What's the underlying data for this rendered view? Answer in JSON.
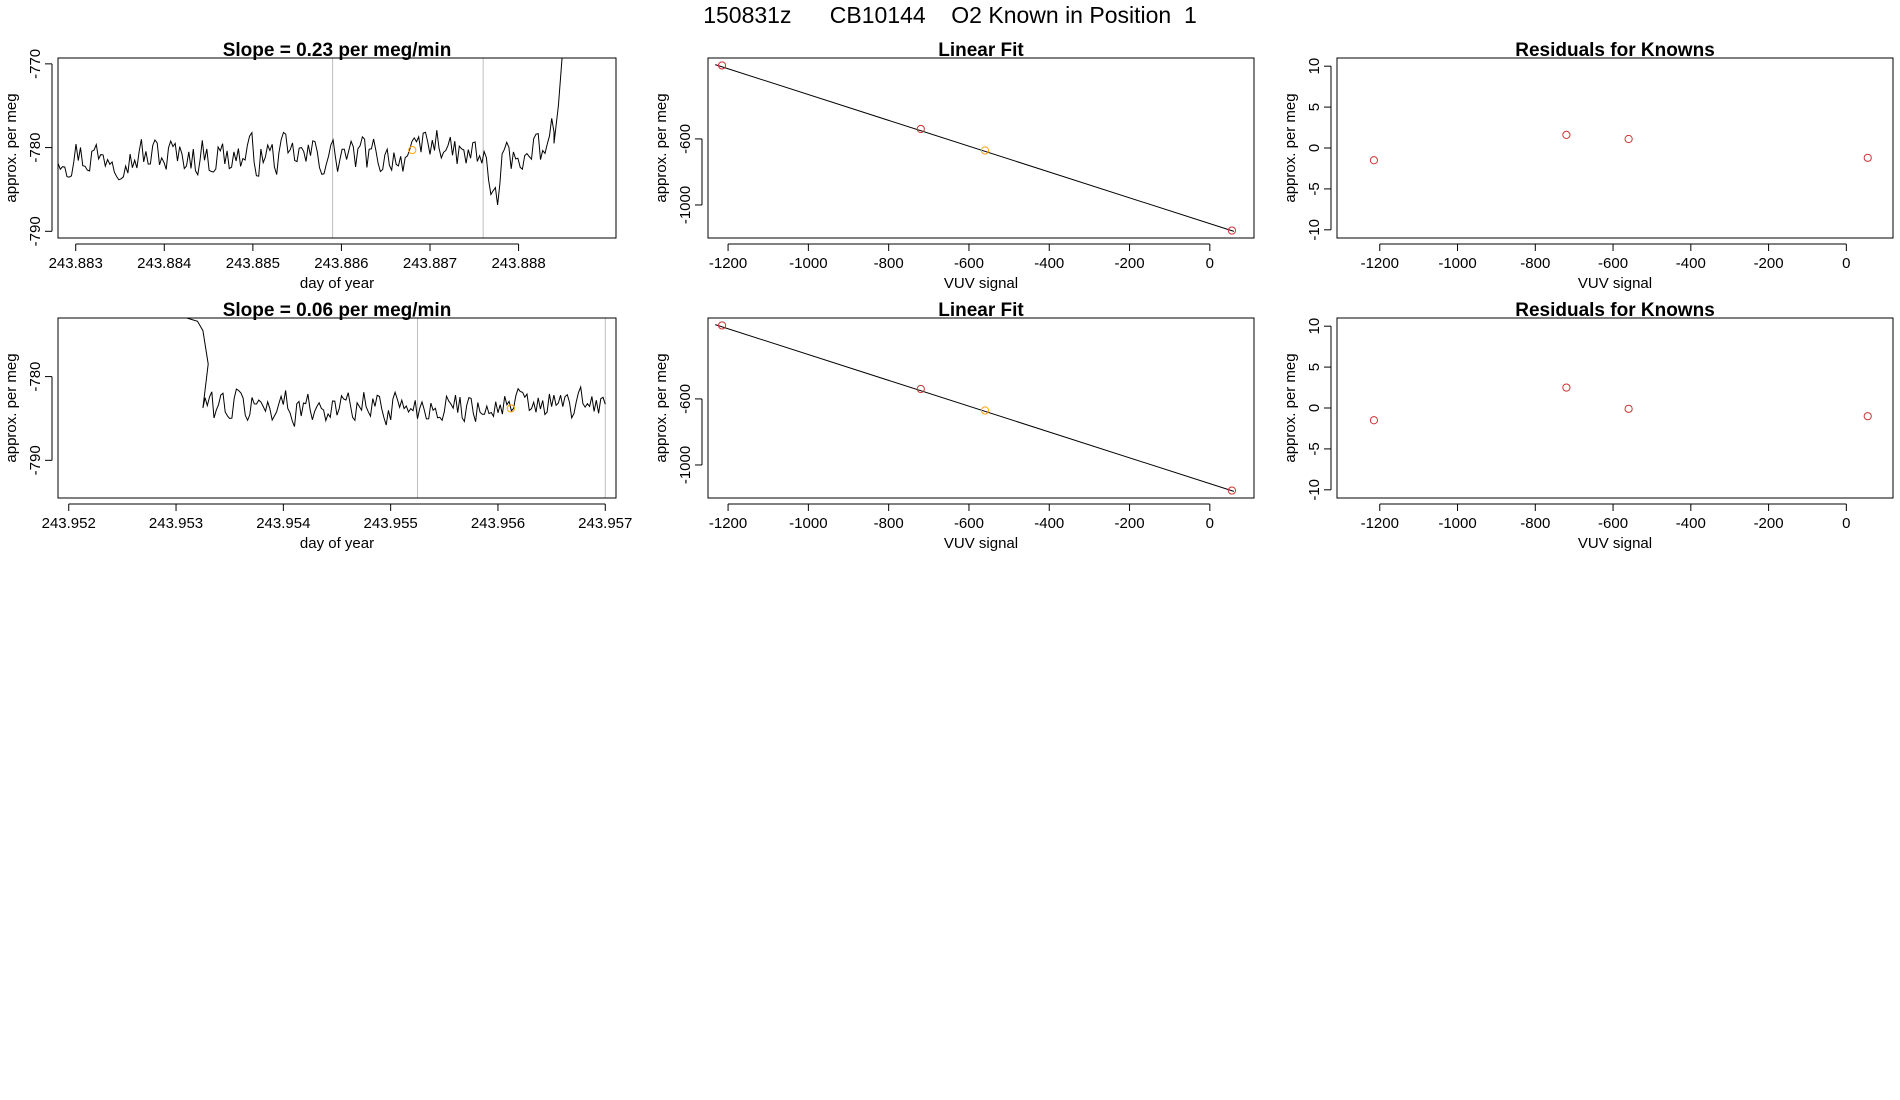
{
  "figure_title": "150831z      CB10144    O2 Known in Position  1",
  "colors": {
    "line": "#000000",
    "frame": "#000000",
    "vline": "#bebebe",
    "point_red": "#cd3333",
    "point_orange": "#ffa500"
  },
  "chart_data": [
    {
      "id": "ts1",
      "type": "line",
      "title": "Slope =  0.23  per meg/min",
      "xlabel": "day of year",
      "ylabel": "approx. per meg",
      "xlim": [
        243.8828,
        243.8891
      ],
      "ylim": [
        -790.8,
        -769.3
      ],
      "xticks": [
        243.883,
        243.884,
        243.885,
        243.886,
        243.887,
        243.888
      ],
      "xtick_labels": [
        "243.883",
        "243.884",
        "243.885",
        "243.886",
        "243.887",
        "243.888"
      ],
      "yticks": [
        -790,
        -780,
        -770
      ],
      "ytick_labels": [
        "-790",
        "-780",
        "-770"
      ],
      "vlines": [
        243.8859,
        243.8876
      ],
      "series": [
        {
          "x_start": 243.8828,
          "x_end": 243.8884,
          "n": 220,
          "base": -781,
          "amp": 1.9,
          "features": [
            {
              "x_from": 243.8869,
              "x_to": 243.8872,
              "delta": 1.6
            },
            {
              "x_from": 243.88765,
              "x_to": 243.8878,
              "delta": -4.5
            },
            {
              "x_from": 243.8883,
              "x_to": 243.8884,
              "delta": 2.5
            }
          ],
          "end_spike": {
            "x": [
              243.8884,
              243.88845,
              243.8885
            ],
            "y": [
              -779.5,
              -775.0,
              -768.0
            ]
          }
        }
      ],
      "markers": [
        {
          "x": 243.8868,
          "y": -780.3,
          "color": "orange"
        }
      ]
    },
    {
      "id": "fit1",
      "type": "scatter",
      "title": "Linear Fit",
      "xlabel": "VUV signal",
      "ylabel": "approx. per meg",
      "xlim": [
        -1250,
        110
      ],
      "ylim": [
        -1200,
        -110
      ],
      "xticks": [
        -1200,
        -1000,
        -800,
        -600,
        -400,
        -200,
        0
      ],
      "xtick_labels": [
        "-1200",
        "-1000",
        "-800",
        "-600",
        "-400",
        "-200",
        "0"
      ],
      "yticks": [
        -1000,
        -600
      ],
      "ytick_labels": [
        "-1000",
        "-600"
      ],
      "fit_line": [
        [
          -1232,
          -150
        ],
        [
          60,
          -1160
        ]
      ],
      "points": [
        {
          "x": -1215,
          "y": -155,
          "color": "red"
        },
        {
          "x": -720,
          "y": -540,
          "color": "red"
        },
        {
          "x": -560,
          "y": -670,
          "color": "orange"
        },
        {
          "x": 55,
          "y": -1155,
          "color": "red"
        }
      ]
    },
    {
      "id": "res1",
      "type": "scatter",
      "title": "Residuals for Knowns",
      "xlabel": "VUV signal",
      "ylabel": "approx. per meg",
      "xlim": [
        -1310,
        120
      ],
      "ylim": [
        -11,
        11
      ],
      "xticks": [
        -1200,
        -1000,
        -800,
        -600,
        -400,
        -200,
        0
      ],
      "xtick_labels": [
        "-1200",
        "-1000",
        "-800",
        "-600",
        "-400",
        "-200",
        "0"
      ],
      "yticks": [
        -10,
        -5,
        0,
        5,
        10
      ],
      "ytick_labels": [
        "-10",
        "-5",
        "0",
        "5",
        "10"
      ],
      "points": [
        {
          "x": -1215,
          "y": -1.5,
          "color": "red"
        },
        {
          "x": -720,
          "y": 1.6,
          "color": "red"
        },
        {
          "x": -560,
          "y": 1.1,
          "color": "red"
        },
        {
          "x": 55,
          "y": -1.2,
          "color": "red"
        }
      ]
    },
    {
      "id": "ts2",
      "type": "line",
      "title": "Slope =  0.06  per meg/min",
      "xlabel": "day of year",
      "ylabel": "approx. per meg",
      "xlim": [
        243.9519,
        243.9571
      ],
      "ylim": [
        -794.5,
        -773.0
      ],
      "xticks": [
        243.952,
        243.953,
        243.954,
        243.955,
        243.956,
        243.957
      ],
      "xtick_labels": [
        "243.952",
        "243.953",
        "243.954",
        "243.955",
        "243.956",
        "243.957"
      ],
      "yticks": [
        -790,
        -780
      ],
      "ytick_labels": [
        "-790",
        "-780"
      ],
      "vlines": [
        243.95525,
        243.957
      ],
      "series": [
        {
          "x_start": 243.95325,
          "x_end": 243.957,
          "n": 180,
          "base": -783.5,
          "amp": 1.7,
          "start_spike": {
            "x": [
              243.9531,
              243.9532,
              243.95325,
              243.9533
            ],
            "y": [
              -773.0,
              -773.4,
              -774.5,
              -778.5
            ]
          }
        }
      ],
      "markers": [
        {
          "x": 243.95612,
          "y": -783.8,
          "color": "orange"
        }
      ]
    },
    {
      "id": "fit2",
      "type": "scatter",
      "title": "Linear Fit",
      "xlabel": "VUV signal",
      "ylabel": "approx. per meg",
      "xlim": [
        -1250,
        110
      ],
      "ylim": [
        -1200,
        -110
      ],
      "xticks": [
        -1200,
        -1000,
        -800,
        -600,
        -400,
        -200,
        0
      ],
      "xtick_labels": [
        "-1200",
        "-1000",
        "-800",
        "-600",
        "-400",
        "-200",
        "0"
      ],
      "yticks": [
        -1000,
        -600
      ],
      "ytick_labels": [
        "-1000",
        "-600"
      ],
      "fit_line": [
        [
          -1232,
          -150
        ],
        [
          60,
          -1160
        ]
      ],
      "points": [
        {
          "x": -1215,
          "y": -155,
          "color": "red"
        },
        {
          "x": -720,
          "y": -540,
          "color": "red"
        },
        {
          "x": -560,
          "y": -670,
          "color": "orange"
        },
        {
          "x": 55,
          "y": -1155,
          "color": "red"
        }
      ]
    },
    {
      "id": "res2",
      "type": "scatter",
      "title": "Residuals for Knowns",
      "xlabel": "VUV signal",
      "ylabel": "approx. per meg",
      "xlim": [
        -1310,
        120
      ],
      "ylim": [
        -11,
        11
      ],
      "xticks": [
        -1200,
        -1000,
        -800,
        -600,
        -400,
        -200,
        0
      ],
      "xtick_labels": [
        "-1200",
        "-1000",
        "-800",
        "-600",
        "-400",
        "-200",
        "0"
      ],
      "yticks": [
        -10,
        -5,
        0,
        5,
        10
      ],
      "ytick_labels": [
        "-10",
        "-5",
        "0",
        "5",
        "10"
      ],
      "points": [
        {
          "x": -1215,
          "y": -1.5,
          "color": "red"
        },
        {
          "x": -720,
          "y": 2.5,
          "color": "red"
        },
        {
          "x": -560,
          "y": -0.1,
          "color": "red"
        },
        {
          "x": 55,
          "y": -1.0,
          "color": "red"
        }
      ]
    }
  ]
}
